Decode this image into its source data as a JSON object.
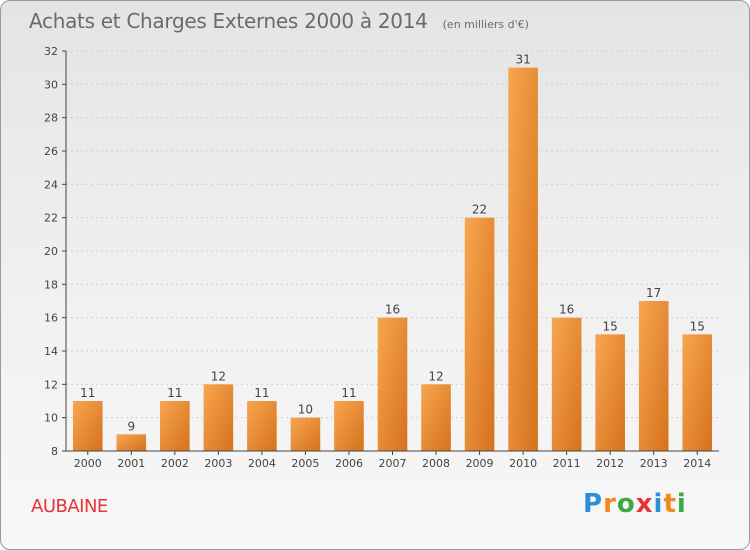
{
  "header": {
    "title": "Achats et Charges Externes 2000 à 2014",
    "unit_note": "(en milliers d'€)"
  },
  "footer": {
    "commune": "AUBAINE",
    "brand": "Proxiti",
    "brand_letters": [
      {
        "char": "P",
        "color": "#2a8fd6"
      },
      {
        "char": "r",
        "color": "#f08a1c"
      },
      {
        "char": "o",
        "color": "#3aa845"
      },
      {
        "char": "x",
        "color": "#e6333a"
      },
      {
        "char": "i",
        "color": "#2a8fd6"
      },
      {
        "char": "t",
        "color": "#f08a1c"
      },
      {
        "char": "i",
        "color": "#3aa845"
      }
    ]
  },
  "colors": {
    "bar_light": "#f8a650",
    "bar_dark": "#d5711c",
    "axis": "#444444",
    "grid": "#cfcfcf",
    "label": "#444444"
  },
  "chart_data": {
    "type": "bar",
    "title": "Achats et Charges Externes 2000 à 2014",
    "subtitle": "(en milliers d'€)",
    "xlabel": "",
    "ylabel": "",
    "categories": [
      "2000",
      "2001",
      "2002",
      "2003",
      "2004",
      "2005",
      "2006",
      "2007",
      "2008",
      "2009",
      "2010",
      "2011",
      "2012",
      "2013",
      "2014"
    ],
    "values": [
      11,
      9,
      11,
      12,
      11,
      10,
      11,
      16,
      12,
      22,
      31,
      16,
      15,
      17,
      15
    ],
    "ylim": [
      8,
      32
    ],
    "yticks": [
      8,
      10,
      12,
      14,
      16,
      18,
      20,
      22,
      24,
      26,
      28,
      30,
      32
    ],
    "grid": "horizontal dotted",
    "legend": "none"
  }
}
